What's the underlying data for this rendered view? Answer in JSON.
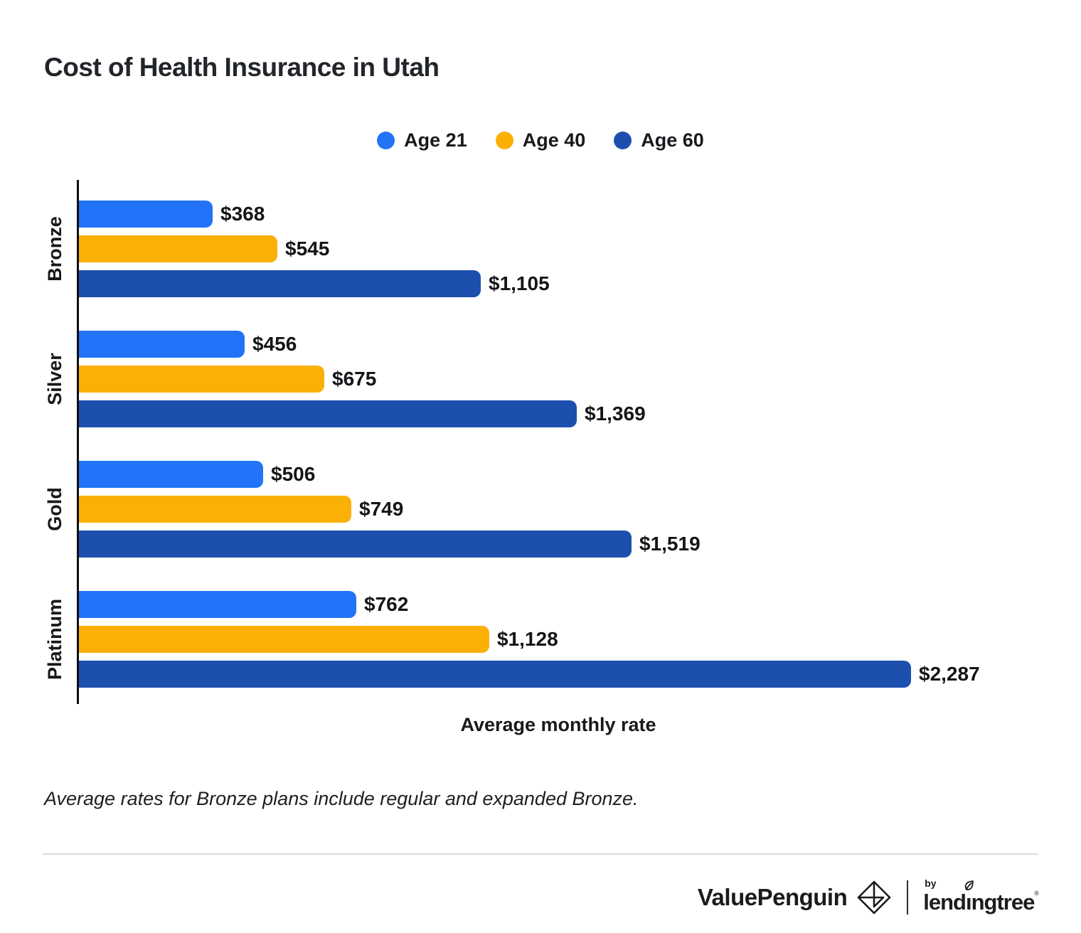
{
  "title": "Cost of Health Insurance in Utah",
  "chart_data": {
    "type": "bar",
    "orientation": "horizontal",
    "title": "Cost of Health Insurance in Utah",
    "xlabel": "Average monthly rate",
    "ylabel": "",
    "categories": [
      "Bronze",
      "Silver",
      "Gold",
      "Platinum"
    ],
    "series": [
      {
        "name": "Age 21",
        "color": "#2273F8",
        "values": [
          368,
          456,
          506,
          762
        ],
        "labels": [
          "$368",
          "$456",
          "$506",
          "$762"
        ]
      },
      {
        "name": "Age 40",
        "color": "#FAB005",
        "values": [
          545,
          675,
          749,
          1128
        ],
        "labels": [
          "$545",
          "$675",
          "$749",
          "$1,128"
        ]
      },
      {
        "name": "Age 60",
        "color": "#1D50AE",
        "values": [
          1105,
          1369,
          1519,
          2287
        ],
        "labels": [
          "$1,105",
          "$1,369",
          "$1,519",
          "$2,287"
        ]
      }
    ],
    "max_value": 2287,
    "xlim": [
      0,
      2287
    ],
    "grid": false,
    "x_ticks_visible": false,
    "legend_position": "top-center",
    "value_labels_visible": true
  },
  "footnote": "Average rates for Bronze plans include regular and expanded Bronze.",
  "footer": {
    "brand": "ValuePenguin",
    "by_label": "by",
    "partner_prefix": "lend",
    "partner_dotless_i": "ı",
    "partner_suffix": "ngtree"
  },
  "colors": {
    "age21": "#2273F8",
    "age40": "#FAB005",
    "age60": "#1D50AE",
    "axis": "#0e0f10",
    "text": "#17191c",
    "divider": "#dbdbdb"
  }
}
